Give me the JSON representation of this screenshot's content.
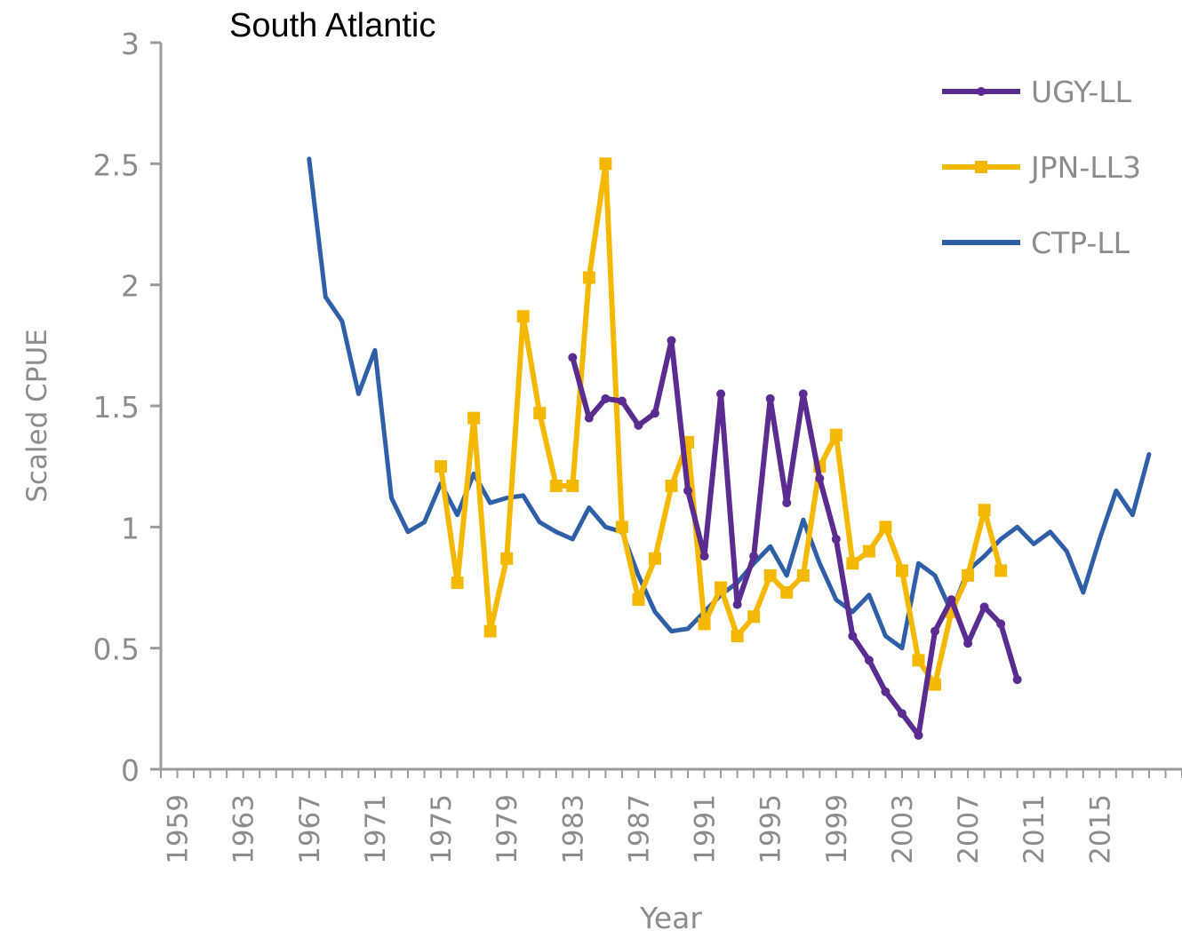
{
  "chart_data": {
    "type": "line",
    "title": "South Atlantic",
    "xlabel": "Year",
    "ylabel": "Scaled CPUE",
    "xlim": [
      1958,
      2020
    ],
    "ylim": [
      0,
      3
    ],
    "x_ticks": [
      "1959",
      "1963",
      "1967",
      "1971",
      "1975",
      "1979",
      "1983",
      "1987",
      "1991",
      "1995",
      "1999",
      "2003",
      "2007",
      "2011",
      "2015"
    ],
    "y_ticks": [
      "0",
      "0.5",
      "1",
      "1.5",
      "2",
      "2.5",
      "3"
    ],
    "grid": false,
    "legend_position": "top-right",
    "series": [
      {
        "name": "UGY-LL",
        "color": "#5b2c8f",
        "marker": "dot",
        "x": [
          1983,
          1984,
          1985,
          1986,
          1987,
          1988,
          1989,
          1990,
          1991,
          1992,
          1993,
          1994,
          1995,
          1996,
          1997,
          1998,
          1999,
          2000,
          2001,
          2002,
          2003,
          2004,
          2005,
          2006,
          2007,
          2008,
          2009,
          2010,
          2011
        ],
        "y": [
          1.7,
          1.45,
          1.53,
          1.52,
          1.42,
          1.47,
          1.77,
          1.15,
          0.88,
          1.55,
          0.68,
          0.88,
          1.53,
          1.1,
          1.55,
          1.2,
          0.95,
          0.55,
          0.45,
          0.32,
          0.23,
          0.14,
          0.57,
          0.7,
          0.52,
          0.67,
          0.6,
          0.37,
          null
        ]
      },
      {
        "name": "JPN-LL3",
        "color": "#f5b800",
        "marker": "square",
        "x": [
          1975,
          1976,
          1977,
          1978,
          1979,
          1980,
          1981,
          1982,
          1983,
          1984,
          1985,
          1986,
          1987,
          1988,
          1989,
          1990,
          1991,
          1992,
          1993,
          1994,
          1995,
          1996,
          1997,
          1998,
          1999,
          2000,
          2001,
          2002,
          2003,
          2004,
          2005,
          2006,
          2007,
          2008,
          2009,
          2010,
          2011
        ],
        "y": [
          1.25,
          0.77,
          1.45,
          0.57,
          0.87,
          1.87,
          1.47,
          1.17,
          1.17,
          2.03,
          2.5,
          1.0,
          0.7,
          0.87,
          1.17,
          1.35,
          0.6,
          0.75,
          0.55,
          0.63,
          0.8,
          0.73,
          0.8,
          1.25,
          1.38,
          0.85,
          0.9,
          1.0,
          0.82,
          0.45,
          0.35,
          0.65,
          0.8,
          1.07,
          0.82,
          null,
          null
        ]
      },
      {
        "name": "CTP-LL",
        "color": "#2f5fa7",
        "marker": "none",
        "x": [
          1967,
          1968,
          1969,
          1970,
          1971,
          1972,
          1973,
          1974,
          1975,
          1976,
          1977,
          1978,
          1979,
          1980,
          1981,
          1982,
          1983,
          1984,
          1985,
          1986,
          1987,
          1988,
          1989,
          1990,
          1991,
          1992,
          1993,
          1994,
          1995,
          1996,
          1997,
          1998,
          1999,
          2000,
          2001,
          2002,
          2003,
          2004,
          2005,
          2006,
          2007,
          2008,
          2009,
          2010,
          2011,
          2012,
          2013,
          2014,
          2015,
          2016,
          2017,
          2018,
          2019
        ],
        "y": [
          2.52,
          1.95,
          1.85,
          1.55,
          1.73,
          1.12,
          0.98,
          1.02,
          1.18,
          1.05,
          1.22,
          1.1,
          1.12,
          1.13,
          1.02,
          0.98,
          0.95,
          1.08,
          1.0,
          0.98,
          0.8,
          0.65,
          0.57,
          0.58,
          0.65,
          0.72,
          0.77,
          0.85,
          0.92,
          0.8,
          1.03,
          0.85,
          0.7,
          0.65,
          0.72,
          0.55,
          0.5,
          0.85,
          0.8,
          0.65,
          0.82,
          0.88,
          0.95,
          1.0,
          0.93,
          0.98,
          0.9,
          0.73,
          0.95,
          1.15,
          1.05,
          1.3,
          null
        ]
      }
    ]
  }
}
